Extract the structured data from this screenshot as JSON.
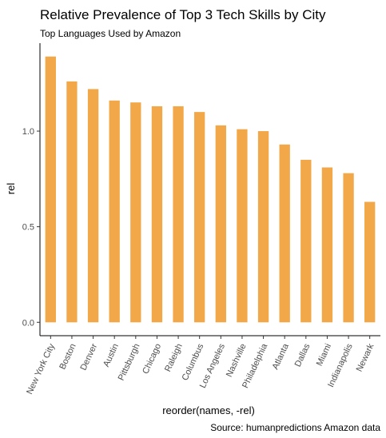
{
  "chart_data": {
    "type": "bar",
    "title": "Relative Prevalence of Top 3 Tech Skills by City",
    "subtitle": "Top Languages Used by Amazon",
    "xlabel": "reorder(names, -rel)",
    "ylabel": "rel",
    "caption": "Source: humanpredictions Amazon data",
    "categories": [
      "New York City",
      "Boston",
      "Denver",
      "Austin",
      "Pittsburgh",
      "Chicago",
      "Raleigh",
      "Columbus",
      "Los Angeles",
      "Nashville",
      "Philadelphia",
      "Atlanta",
      "Dallas",
      "Miami",
      "Indianapolis",
      "Newark"
    ],
    "values": [
      1.39,
      1.26,
      1.22,
      1.16,
      1.15,
      1.13,
      1.13,
      1.1,
      1.03,
      1.01,
      1.0,
      0.93,
      0.85,
      0.81,
      0.78,
      0.63
    ],
    "yticks": [
      0.0,
      0.5,
      1.0
    ],
    "ytick_labels": [
      "0.0",
      "0.5",
      "1.0"
    ],
    "ylim": [
      -0.07,
      1.46
    ],
    "bar_color": "#F2A848",
    "grid": false,
    "legend": "none"
  }
}
